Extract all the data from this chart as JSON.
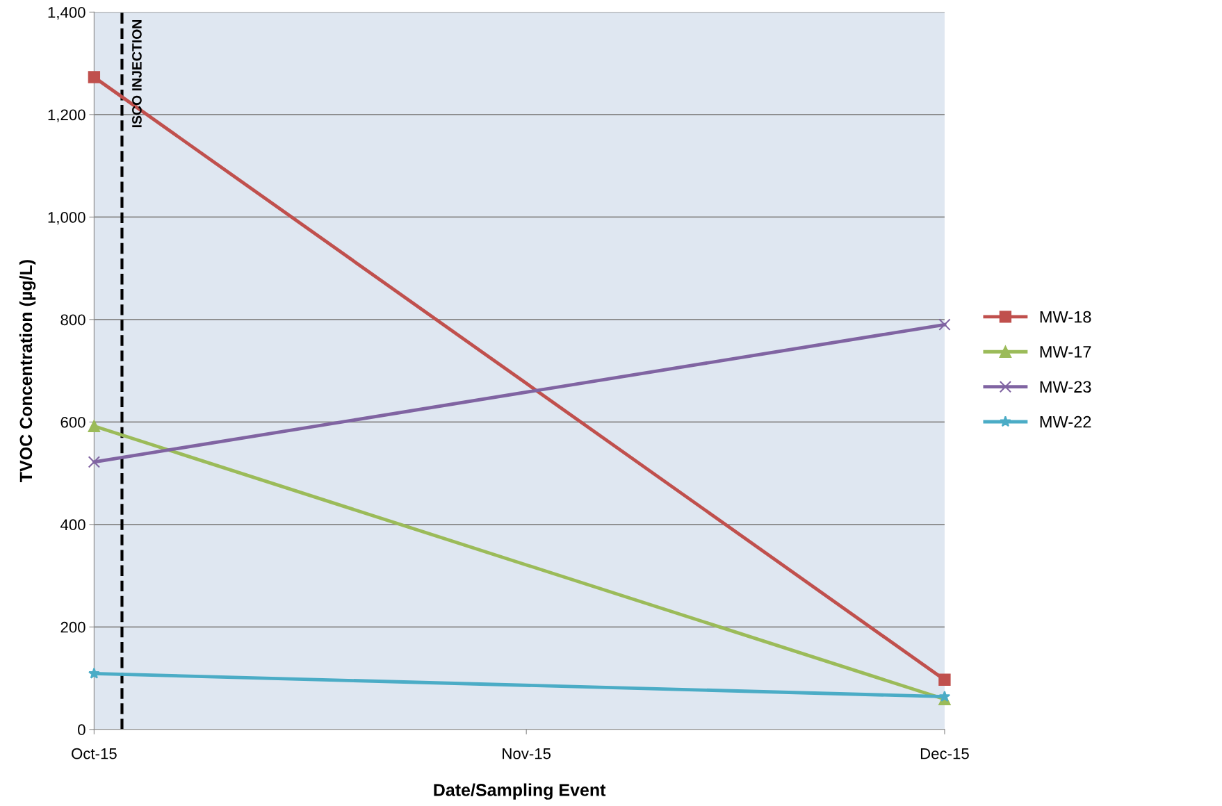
{
  "chart_data": {
    "type": "line",
    "xlabel": "Date/Sampling Event",
    "ylabel": "TVOC Concentration (µg/L)",
    "x": [
      "2015-10",
      "2015-12"
    ],
    "series": [
      {
        "name": "MW-18",
        "color": "#c0504d",
        "marker": "square",
        "values": [
          1273,
          97
        ]
      },
      {
        "name": "MW-17",
        "color": "#9bbb59",
        "marker": "triangle",
        "values": [
          592,
          59
        ]
      },
      {
        "name": "MW-23",
        "color": "#8064a2",
        "marker": "cross",
        "values": [
          522,
          790
        ]
      },
      {
        "name": "MW-22",
        "color": "#4bacc6",
        "marker": "star",
        "values": [
          109,
          64
        ]
      }
    ],
    "xlim": [
      "2015-10",
      "2015-12"
    ],
    "xticks": [
      {
        "value": "2015-10",
        "label": "Oct-15"
      },
      {
        "value": "2015-11",
        "label": "Nov-15"
      },
      {
        "value": "2015-12",
        "label": "Dec-15"
      }
    ],
    "ylim": [
      0,
      1400
    ],
    "yticks": [
      {
        "value": 0,
        "label": "0"
      },
      {
        "value": 200,
        "label": "200"
      },
      {
        "value": 400,
        "label": "400"
      },
      {
        "value": 600,
        "label": "600"
      },
      {
        "value": 800,
        "label": "800"
      },
      {
        "value": 1000,
        "label": "1,000"
      },
      {
        "value": 1200,
        "label": "1,200"
      },
      {
        "value": 1400,
        "label": "1,400"
      }
    ],
    "ref_lines": [
      {
        "axis": "x",
        "value": "2015-10-03",
        "label": "ISCO INJECTION",
        "color": "#000000",
        "line_style": "dashed"
      }
    ],
    "grid": "y",
    "legend": "right",
    "line_style": "solid"
  }
}
